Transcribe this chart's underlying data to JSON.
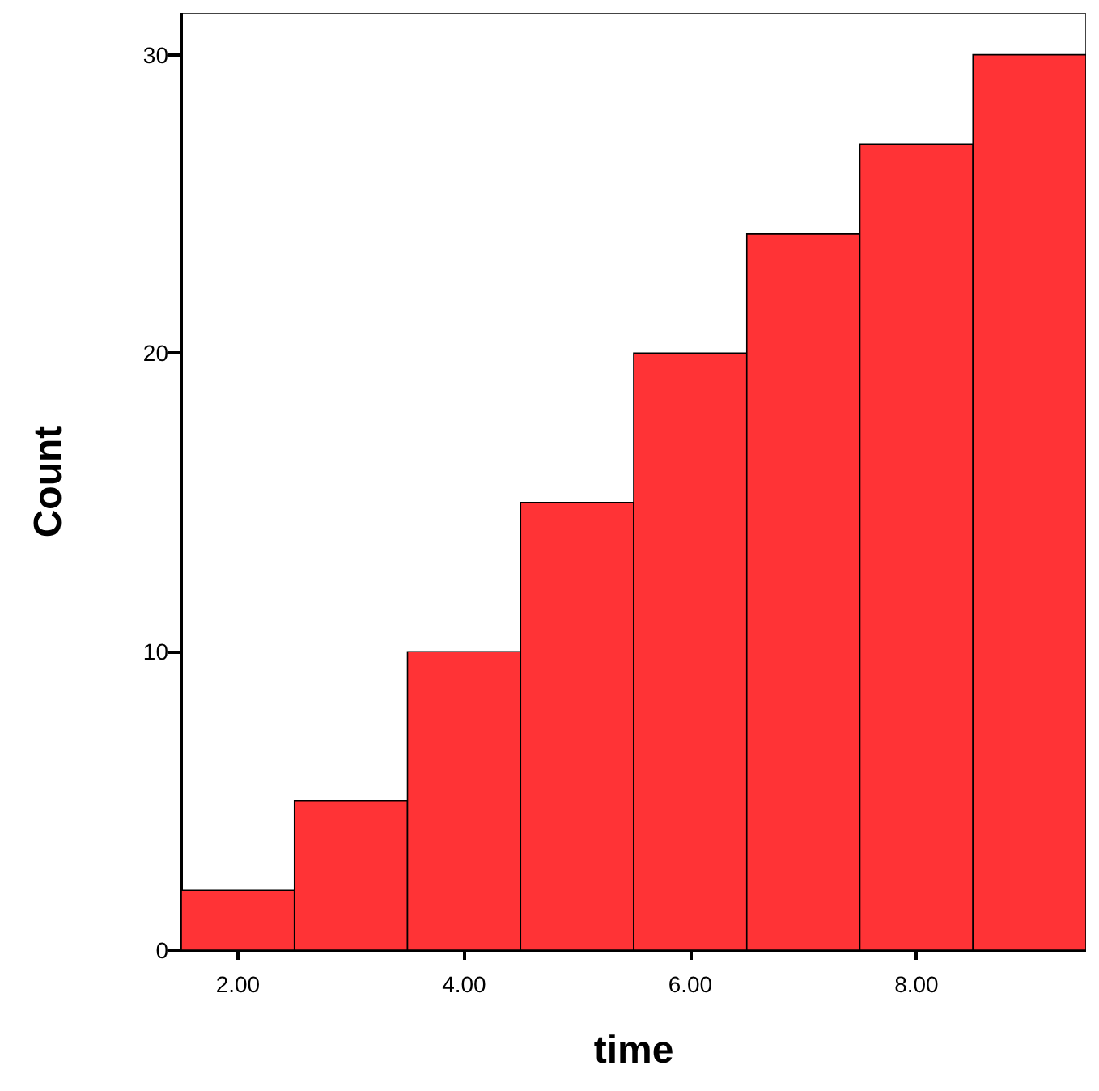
{
  "chart_data": {
    "type": "histogram",
    "xlabel": "time",
    "ylabel": "Count",
    "color": "#ff3336",
    "bins": [
      1.5,
      2.5,
      3.5,
      4.5,
      5.5,
      6.5,
      7.5,
      8.5,
      9.5
    ],
    "values": [
      2,
      5,
      10,
      15,
      20,
      24,
      27,
      30
    ],
    "xlim": [
      1.5,
      9.5
    ],
    "ylim": [
      0,
      31.4
    ],
    "xticks": [
      {
        "value": 2,
        "label": "2.00"
      },
      {
        "value": 4,
        "label": "4.00"
      },
      {
        "value": 6,
        "label": "6.00"
      },
      {
        "value": 8,
        "label": "8.00"
      }
    ],
    "yticks": [
      0,
      10,
      20,
      30
    ],
    "grid": false
  }
}
